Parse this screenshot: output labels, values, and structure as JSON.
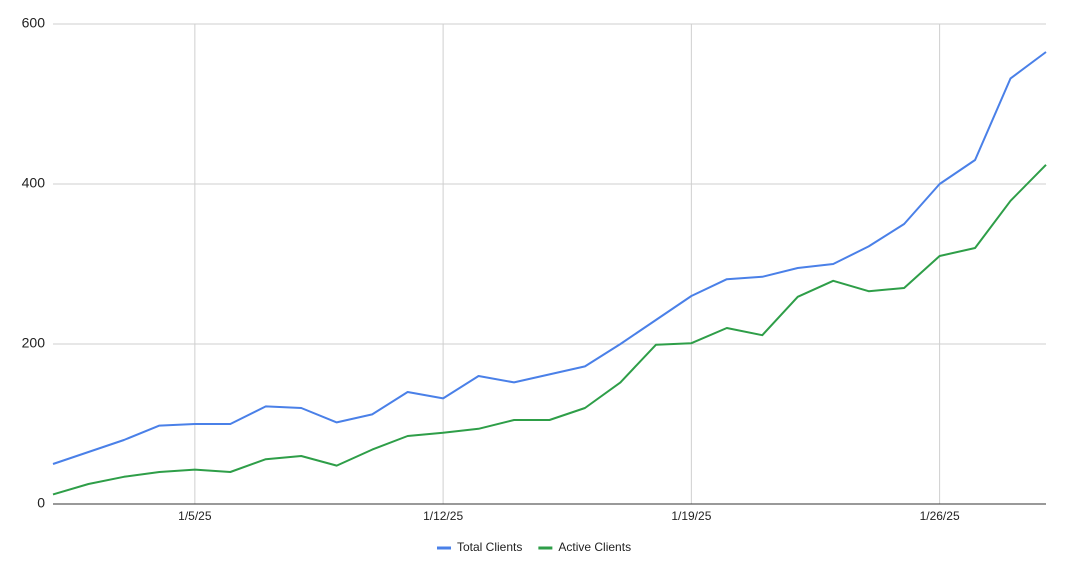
{
  "chart_data": {
    "type": "line",
    "categories": [
      null,
      null,
      null,
      null,
      "1/5/25",
      null,
      null,
      null,
      null,
      null,
      null,
      "1/12/25",
      null,
      null,
      null,
      null,
      null,
      null,
      "1/19/25",
      null,
      null,
      null,
      null,
      null,
      null,
      "1/26/25",
      null,
      null,
      null
    ],
    "series": [
      {
        "name": "Total Clients",
        "color": "#4a80e8",
        "values": [
          50,
          65,
          80,
          98,
          100,
          100,
          122,
          120,
          102,
          112,
          140,
          132,
          160,
          152,
          162,
          172,
          200,
          230,
          260,
          281,
          284,
          295,
          300,
          322,
          350,
          400,
          430,
          532,
          565
        ]
      },
      {
        "name": "Active Clients",
        "color": "#2e9e48",
        "values": [
          12,
          25,
          34,
          40,
          43,
          40,
          56,
          60,
          48,
          68,
          85,
          89,
          94,
          105,
          105,
          120,
          152,
          199,
          201,
          220,
          211,
          259,
          279,
          266,
          270,
          310,
          320,
          379,
          424
        ]
      }
    ],
    "ylim": [
      0,
      600
    ],
    "yticks": [
      0,
      200,
      400,
      600
    ],
    "grid": true,
    "legend": "bottom"
  }
}
